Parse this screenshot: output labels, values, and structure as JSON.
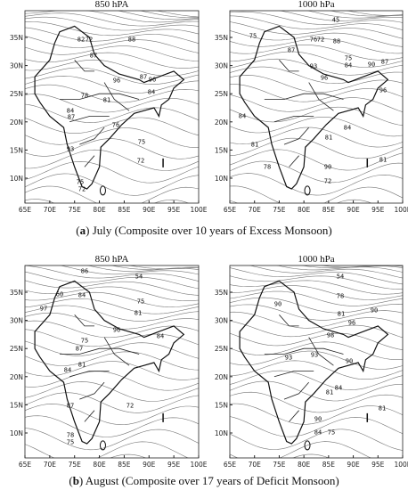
{
  "panels": [
    {
      "title": "850 hPA",
      "contour_labels": [
        "82",
        "72",
        "88",
        "87",
        "96",
        "87",
        "96",
        "84",
        "78",
        "81",
        "84",
        "87",
        "76",
        "93",
        "75",
        "72",
        "75",
        "72"
      ]
    },
    {
      "title": "1000 hPa",
      "contour_labels": [
        "45",
        "75",
        "76",
        "72",
        "88",
        "87",
        "75",
        "84",
        "90",
        "87",
        "93",
        "96",
        "96",
        "84",
        "81",
        "78",
        "81",
        "90",
        "72",
        "84",
        "81"
      ]
    },
    {
      "title": "850 hPA",
      "contour_labels": [
        "86",
        "54",
        "60",
        "97",
        "84",
        "75",
        "81",
        "96",
        "84",
        "75",
        "87",
        "84",
        "81",
        "72",
        "87",
        "78",
        "75"
      ]
    },
    {
      "title": "1000 hPa",
      "contour_labels": [
        "54",
        "78",
        "90",
        "81",
        "90",
        "96",
        "98",
        "93",
        "93",
        "90",
        "84",
        "81",
        "81",
        "90",
        "84",
        "75"
      ]
    }
  ],
  "lat_labels": [
    "35N",
    "30N",
    "25N",
    "20N",
    "15N",
    "10N"
  ],
  "lon_labels": [
    "65E",
    "70E",
    "75E",
    "80E",
    "85E",
    "90E",
    "95E",
    "100E"
  ],
  "captions": [
    {
      "open": "(",
      "letter": "a",
      "text": ") July (Composite over 10 years of Excess Monsoon)"
    },
    {
      "open": "(",
      "letter": "b",
      "text": ") August (Composite over 17 years of Deficit Monsoon)"
    }
  ]
}
